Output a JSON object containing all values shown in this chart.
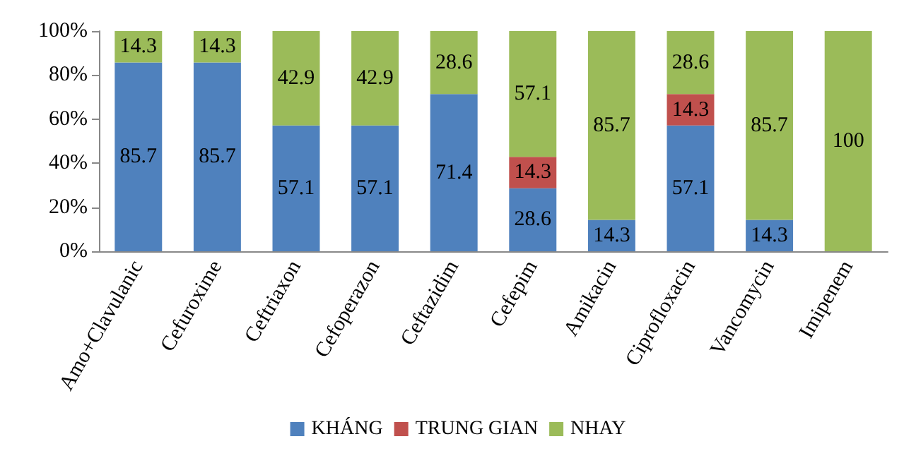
{
  "chart_data": {
    "type": "bar",
    "stacked": true,
    "categories": [
      "Amo+Clavulanic",
      "Cefuroxime",
      "Ceftriaxon",
      "Cefoperazon",
      "Ceftazidim",
      "Cefepim",
      "Amikacin",
      "Ciprofloxacin",
      "Vancomycin",
      "Imipenem"
    ],
    "series": [
      {
        "name": "KHÁNG",
        "color": "#4f81bd",
        "values": [
          85.7,
          85.7,
          57.1,
          57.1,
          71.4,
          28.6,
          14.3,
          57.1,
          14.3,
          null
        ]
      },
      {
        "name": "TRUNG GIAN",
        "color": "#c0504d",
        "values": [
          null,
          null,
          null,
          null,
          null,
          14.3,
          null,
          14.3,
          null,
          null
        ]
      },
      {
        "name": "NHAY",
        "color": "#9bbb59",
        "values": [
          14.3,
          14.3,
          42.9,
          42.9,
          28.6,
          57.1,
          85.7,
          28.6,
          85.7,
          100
        ]
      }
    ],
    "ylim": [
      0,
      100
    ],
    "yticks": [
      {
        "value": 0,
        "label": "0%"
      },
      {
        "value": 20,
        "label": "20%"
      },
      {
        "value": 40,
        "label": "40%"
      },
      {
        "value": 60,
        "label": "60%"
      },
      {
        "value": 80,
        "label": "80%"
      },
      {
        "value": 100,
        "label": "100%"
      }
    ],
    "grid": false,
    "legend": "bottom",
    "data_labels": true
  }
}
